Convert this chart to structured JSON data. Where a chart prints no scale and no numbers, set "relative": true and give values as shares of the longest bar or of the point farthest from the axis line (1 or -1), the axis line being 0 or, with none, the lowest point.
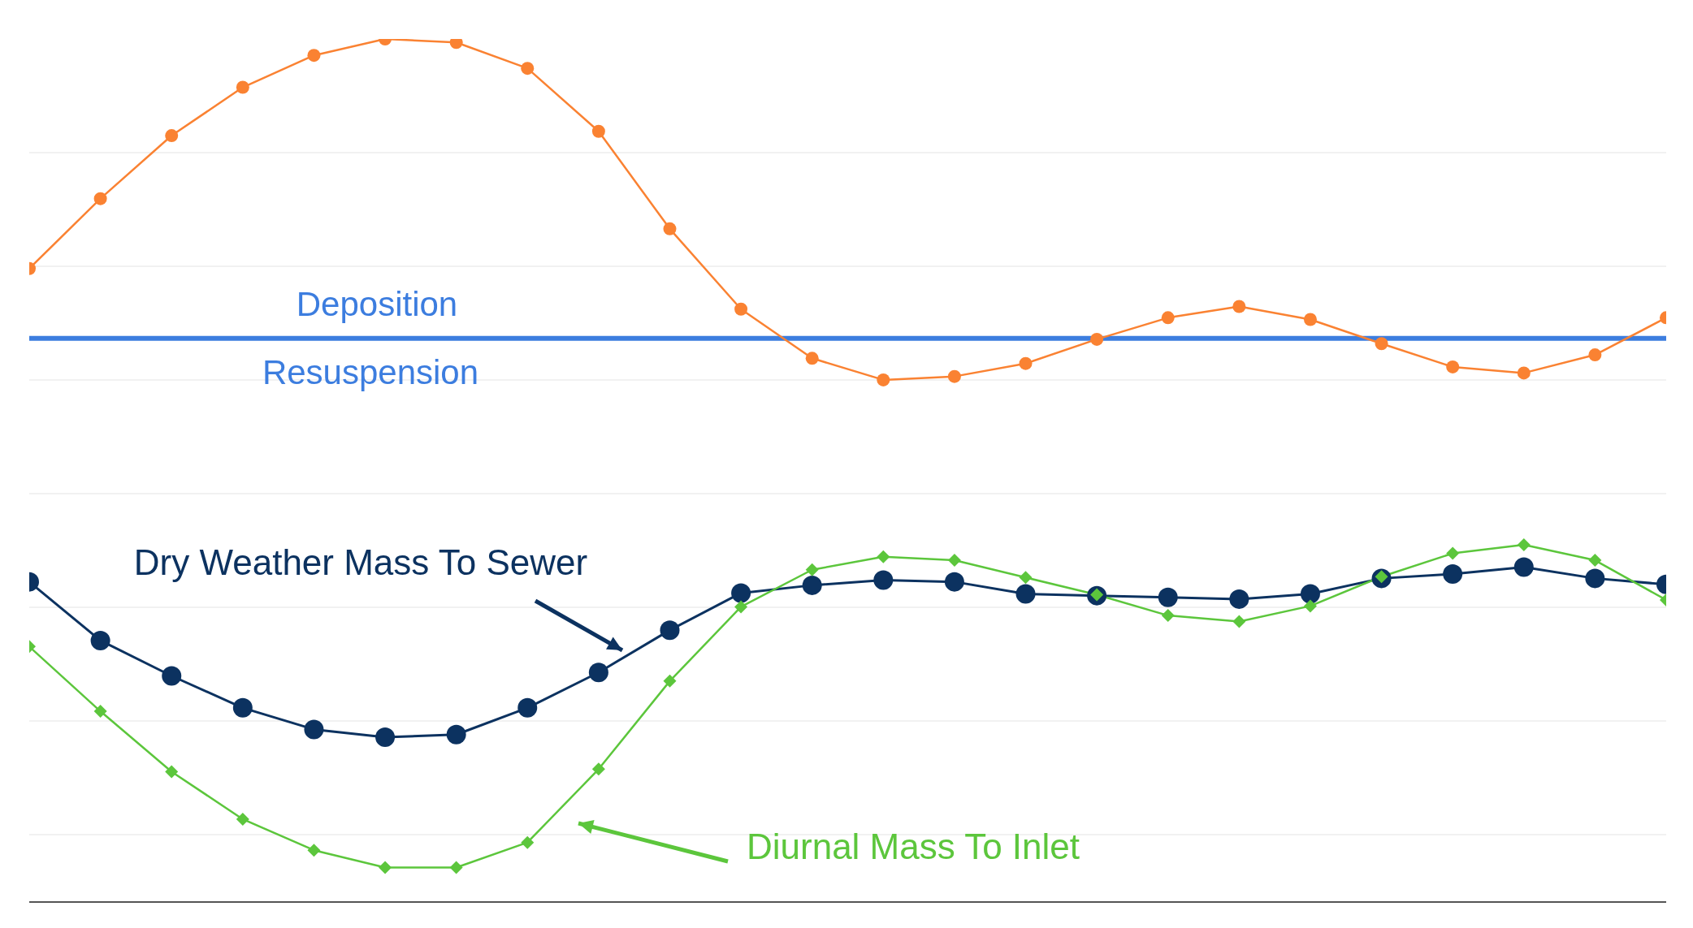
{
  "chart_data": {
    "type": "line",
    "relative": true,
    "grid": "y",
    "line_style": "solid",
    "categories": [
      null,
      null,
      null,
      null,
      null,
      null,
      null,
      null,
      null,
      null,
      null,
      null,
      null,
      null,
      null,
      null,
      null,
      null,
      null,
      null,
      null,
      null,
      null,
      null
    ],
    "series": [
      {
        "color": "#fa8232",
        "marker": "circle",
        "values": [
          0.734,
          0.815,
          0.888,
          0.944,
          0.981,
          1,
          0.996,
          0.966,
          0.893,
          0.78,
          0.687,
          0.63,
          0.605,
          0.609,
          0.624,
          0.652,
          0.677,
          0.69,
          0.675,
          0.647,
          0.62,
          0.613,
          0.634,
          0.677
        ]
      },
      {
        "name": "Dry Weather Mass To Sewer",
        "color": "#0c3260",
        "marker": "circle",
        "values": [
          0.371,
          0.303,
          0.262,
          0.225,
          0.2,
          0.191,
          0.194,
          0.225,
          0.266,
          0.315,
          0.358,
          0.367,
          0.373,
          0.371,
          0.357,
          0.355,
          0.353,
          0.351,
          0.357,
          0.375,
          0.38,
          0.388,
          0.375,
          0.368
        ]
      },
      {
        "name": "Diurnal Mass To Inlet",
        "color": "#5cc63c",
        "marker": "diamond",
        "values": [
          0.296,
          0.221,
          0.151,
          0.096,
          0.06,
          0.04,
          0.04,
          0.069,
          0.154,
          0.256,
          0.342,
          0.385,
          0.4,
          0.396,
          0.376,
          0.356,
          0.332,
          0.325,
          0.343,
          0.377,
          0.404,
          0.414,
          0.396,
          0.35
        ]
      }
    ],
    "ref_lines": [
      {
        "axis": "y",
        "value": 0.653,
        "color": "#3c7ddf"
      }
    ],
    "annotations": [
      "Deposition",
      "Resuspension"
    ]
  }
}
